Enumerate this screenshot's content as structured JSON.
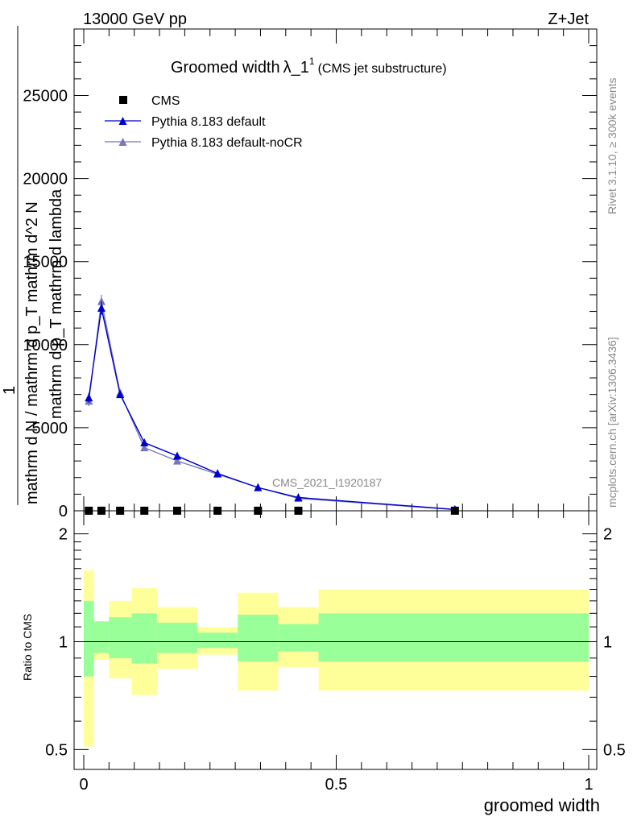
{
  "header": {
    "energy_label": "13000 GeV pp",
    "process_label": "Z+Jet",
    "title_main": "Groomed width",
    "title_symbol": "λ_1",
    "title_sup": "1",
    "title_sub": "(CMS jet substructure)",
    "analysis_id": "CMS_2021_I1920187",
    "side_rivet": "Rivet 3.1.10, ≥ 300k events",
    "side_mcplots": "mcplots.cern.ch [arXiv:1306.3436]"
  },
  "axes": {
    "ylabel_numerator": "1",
    "ylabel_denominator": "mathrm d N / mathrm d p_T mathrm d^2 N",
    "ylabel_denominator2": "mathrm d p_T mathrm d lambda",
    "xlabel": "groomed width",
    "ratio_ylabel": "Ratio to CMS"
  },
  "legend": {
    "cms": "CMS",
    "default": "Pythia 8.183 default",
    "nocr": "Pythia 8.183 default-noCR"
  },
  "chart_data": {
    "type": "line",
    "title": "Groomed width λ_1^1 (CMS jet substructure)",
    "xlabel": "groomed width",
    "xlim": [
      0,
      1
    ],
    "ylim": [
      0,
      29000
    ],
    "x_ticks": [
      0,
      0.5,
      1
    ],
    "x_tick_labels": [
      "0",
      "0.5",
      "1"
    ],
    "y_ticks": [
      0,
      5000,
      10000,
      15000,
      20000,
      25000
    ],
    "y_tick_labels": [
      "0",
      "5000",
      "10000",
      "15000",
      "20000",
      "25000"
    ],
    "x": [
      0.01,
      0.035,
      0.072,
      0.12,
      0.185,
      0.265,
      0.345,
      0.425,
      0.735
    ],
    "series": [
      {
        "name": "CMS",
        "color": "#000000",
        "marker": "square",
        "values": [
          5,
          5,
          5,
          5,
          5,
          5,
          5,
          5,
          5
        ]
      },
      {
        "name": "Pythia 8.183 default",
        "color": "#0000cc",
        "marker": "triangle",
        "values": [
          6800,
          12200,
          7000,
          4100,
          3300,
          2250,
          1400,
          800,
          80
        ],
        "errors": [
          300,
          400,
          150,
          120,
          100,
          80,
          60,
          40,
          20
        ]
      },
      {
        "name": "Pythia 8.183 default-noCR",
        "color": "#7777bb",
        "marker": "triangle",
        "values": [
          6600,
          12600,
          7100,
          3800,
          3000,
          2200,
          1400,
          750,
          70
        ],
        "errors": [
          300,
          400,
          150,
          120,
          100,
          80,
          60,
          40,
          20
        ]
      }
    ],
    "ratio": {
      "ylabel": "Ratio to CMS",
      "ylim": [
        0.44,
        2.32
      ],
      "y_ticks": [
        0.5,
        1,
        2
      ],
      "y_tick_labels": [
        "0.5",
        "1",
        "2"
      ],
      "bins": [
        {
          "xlo": 0.0,
          "xhi": 0.02,
          "green": [
            0.8,
            1.3
          ],
          "yellow": [
            0.51,
            1.58
          ]
        },
        {
          "xlo": 0.02,
          "xhi": 0.05,
          "green": [
            0.93,
            1.14
          ],
          "yellow": [
            0.89,
            1.1
          ]
        },
        {
          "xlo": 0.05,
          "xhi": 0.095,
          "green": [
            0.9,
            1.17
          ],
          "yellow": [
            0.79,
            1.3
          ]
        },
        {
          "xlo": 0.095,
          "xhi": 0.145,
          "green": [
            0.87,
            1.2
          ],
          "yellow": [
            0.71,
            1.41
          ]
        },
        {
          "xlo": 0.145,
          "xhi": 0.225,
          "green": [
            0.93,
            1.13
          ],
          "yellow": [
            0.84,
            1.25
          ]
        },
        {
          "xlo": 0.225,
          "xhi": 0.305,
          "green": [
            0.96,
            1.06
          ],
          "yellow": [
            0.92,
            1.1
          ]
        },
        {
          "xlo": 0.305,
          "xhi": 0.385,
          "green": [
            0.88,
            1.19
          ],
          "yellow": [
            0.73,
            1.37
          ]
        },
        {
          "xlo": 0.385,
          "xhi": 0.465,
          "green": [
            0.94,
            1.12
          ],
          "yellow": [
            0.85,
            1.25
          ]
        },
        {
          "xlo": 0.465,
          "xhi": 1.0,
          "green": [
            0.88,
            1.2
          ],
          "yellow": [
            0.73,
            1.4
          ]
        }
      ]
    }
  }
}
